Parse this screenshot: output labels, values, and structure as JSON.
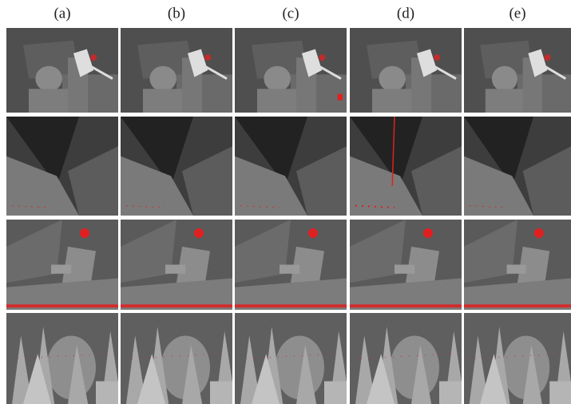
{
  "column_labels": [
    "(a)",
    "(b)",
    "(c)",
    "(d)",
    "(e)"
  ]
}
